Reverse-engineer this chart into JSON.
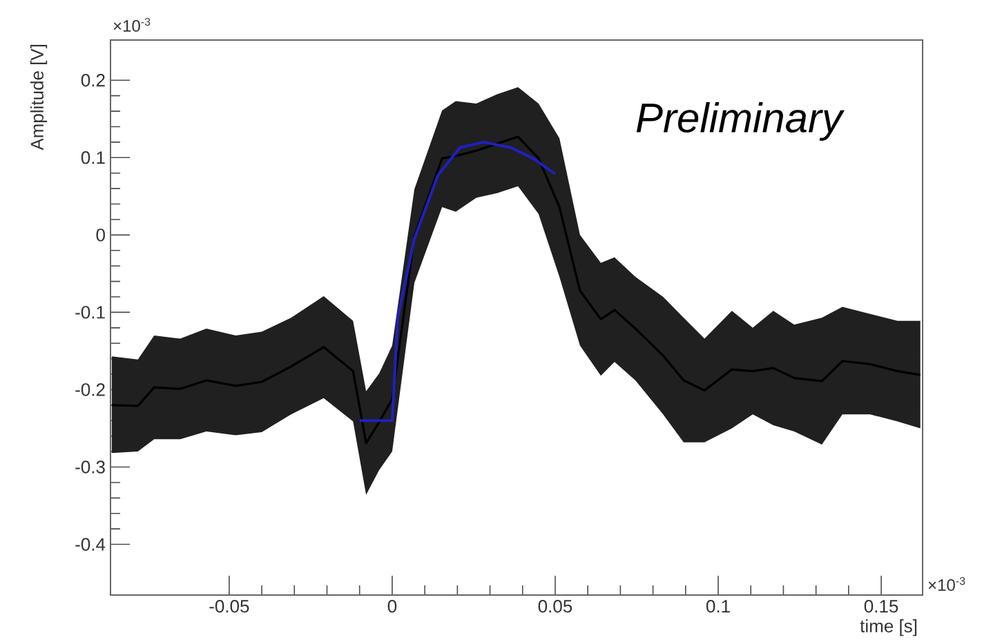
{
  "chart_data": {
    "type": "line",
    "xlabel": "time [s]",
    "ylabel": "Amplitude [V]",
    "annotations": [
      "Preliminary",
      "×10$^{-3}$",
      "×10$^{-3}$"
    ],
    "xlim": [
      -0.0864,
      0.1627
    ],
    "ylim": [
      -0.4655,
      0.252
    ],
    "xticks": [
      -0.05,
      0,
      0.05,
      0.1,
      0.15
    ],
    "yticks": [
      -0.4,
      -0.3,
      -0.2,
      -0.1,
      0,
      0.1,
      0.2
    ],
    "series": [
      {
        "color": "#000000",
        "x": [
          -0.086,
          -0.078,
          -0.073,
          -0.065,
          -0.057,
          -0.048,
          -0.04,
          -0.031,
          -0.021,
          -0.012,
          -0.008,
          -0.004,
          0,
          0.0068,
          0.0153,
          0.0195,
          0.0258,
          0.0322,
          0.0386,
          0.0449,
          0.0513,
          0.0576,
          0.064,
          0.0682,
          0.0746,
          0.0831,
          0.0894,
          0.0958,
          0.1042,
          0.1106,
          0.1169,
          0.1233,
          0.1318,
          0.1381,
          0.1466,
          0.155,
          0.162
        ],
        "upper": [
          -0.157,
          -0.161,
          -0.13,
          -0.134,
          -0.121,
          -0.13,
          -0.125,
          -0.107,
          -0.079,
          -0.111,
          -0.202,
          -0.179,
          -0.143,
          0.059,
          0.161,
          0.173,
          0.17,
          0.182,
          0.191,
          0.17,
          0.125,
          0,
          -0.036,
          -0.029,
          -0.054,
          -0.08,
          -0.107,
          -0.134,
          -0.098,
          -0.12,
          -0.098,
          -0.116,
          -0.107,
          -0.093,
          -0.102,
          -0.111,
          -0.111
        ],
        "lower": [
          -0.282,
          -0.28,
          -0.264,
          -0.264,
          -0.254,
          -0.259,
          -0.255,
          -0.232,
          -0.211,
          -0.241,
          -0.336,
          -0.304,
          -0.28,
          -0.062,
          0.036,
          0.03,
          0.048,
          0.054,
          0.063,
          0.027,
          -0.054,
          -0.143,
          -0.182,
          -0.164,
          -0.188,
          -0.232,
          -0.268,
          -0.268,
          -0.25,
          -0.232,
          -0.246,
          -0.254,
          -0.271,
          -0.232,
          -0.232,
          -0.241,
          -0.25
        ],
        "values": [
          -0.22,
          -0.221,
          -0.197,
          -0.199,
          -0.188,
          -0.195,
          -0.19,
          -0.17,
          -0.145,
          -0.176,
          -0.269,
          -0.242,
          -0.212,
          -0.002,
          0.099,
          0.102,
          0.109,
          0.118,
          0.127,
          0.099,
          0.036,
          -0.072,
          -0.109,
          -0.097,
          -0.121,
          -0.156,
          -0.188,
          -0.201,
          -0.174,
          -0.176,
          -0.172,
          -0.185,
          -0.189,
          -0.163,
          -0.167,
          -0.176,
          -0.181
        ]
      },
      {
        "color": "#2020c0",
        "x": [
          -0.01,
          0,
          0.0017,
          0.0068,
          0.014,
          0.0208,
          0.028,
          0.0364,
          0.0436,
          0.05
        ],
        "values": [
          -0.24,
          -0.24,
          -0.107,
          -0.005,
          0.077,
          0.113,
          0.12,
          0.113,
          0.098,
          0.079
        ]
      }
    ]
  }
}
